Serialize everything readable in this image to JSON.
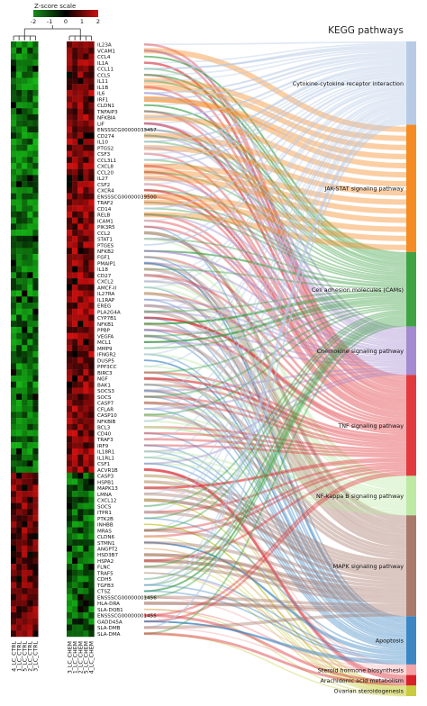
{
  "scale": {
    "title": "Z-score scale",
    "ticks": [
      "-2",
      "-1",
      "0",
      "1",
      "2"
    ],
    "low_color": "#1a8c1a",
    "mid_color": "#000000",
    "high_color": "#d01010"
  },
  "right_title": "KEGG pathways",
  "genes": [
    "IL23A",
    "VCAM1",
    "CCL4",
    "IL1A",
    "CCL11",
    "CCL5",
    "IL11",
    "IL1B",
    "IL6",
    "IRF1",
    "CLDN1",
    "TNFAIP3",
    "NFKBIA",
    "LIF",
    "ENSSSCG00000033457",
    "CD274",
    "IL10",
    "PTGS2",
    "CSF3",
    "CCL3L1",
    "CXCL8",
    "CCL20",
    "IL27",
    "CSF2",
    "CXCR4",
    "ENSSSCG00000039500",
    "TRAF2",
    "CD14",
    "RELB",
    "ICAM1",
    "PIK3R5",
    "CCL2",
    "STAT1",
    "PTGES",
    "NFKB2",
    "FGF1",
    "PMAIP1",
    "IL18",
    "CD27",
    "CXCL2",
    "AMCF-II",
    "IL27RA",
    "IL1RAP",
    "EREG",
    "PLA2G4A",
    "CYP7B1",
    "NFKB1",
    "PPBP",
    "VEGFA",
    "MCL1",
    "MMP9",
    "IFNGR2",
    "DUSP5",
    "PPP3CC",
    "BIRC3",
    "NGF",
    "BAK1",
    "SOCS3",
    "SOCS",
    "CASP7",
    "CFLAR",
    "CASP10",
    "NFKBIB",
    "BCL3",
    "CD40",
    "TRAF3",
    "IRF9",
    "IL18R1",
    "IL1RL1",
    "CSF1",
    "ACVR1B",
    "CASP3",
    "HSPB1",
    "MAPK13",
    "LMNA",
    "CXCL12",
    "SOCS",
    "ITPR1",
    "PTK2B",
    "INHBB",
    "MRAS",
    "CLDN6",
    "STMN1",
    "ANGPT2",
    "HSD3B7",
    "HSPA2",
    "FLNC",
    "TRAF5",
    "CDH5",
    "TGFB3",
    "CTSZ",
    "ENSSSCG00000001456",
    "HLA-DRA",
    "SLA-DQB1",
    "ENSSSCG00000001455",
    "GADD45A",
    "SLA-DMB",
    "SLA-DMA"
  ],
  "samples": [
    "4_LC_CTRL",
    "1_LC_CTRL",
    "5_LC_CTRL",
    "2_LC_CTRL",
    "3_LC_CTRL",
    "3_LC_CHEM",
    "1_LC_CHEM",
    "2_LC_CHEM",
    "5_LC_CHEM",
    "4_LC_CHEM"
  ],
  "pathways": [
    {
      "name": "Cytokine-cytokine receptor interaction",
      "color": "#b7cbe6"
    },
    {
      "name": "JAK-STAT signaling pathway",
      "color": "#f58b23"
    },
    {
      "name": "Cell adhesion molecules (CAMs)",
      "color": "#3fa344"
    },
    {
      "name": "Chemokine signaling pathway",
      "color": "#a48ad0"
    },
    {
      "name": "TNF signaling pathway",
      "color": "#e03a3e"
    },
    {
      "name": "NF-kappa B signaling pathway",
      "color": "#bde9a4"
    },
    {
      "name": "MAPK signaling pathway",
      "color": "#a97a6c"
    },
    {
      "name": "Apoptosis",
      "color": "#3b86c3"
    },
    {
      "name": "Steroid hormone biosynthesis",
      "color": "#f5a3a6"
    },
    {
      "name": "Arachidonic acid metabolism",
      "color": "#d7222a"
    },
    {
      "name": "Ovarian steroidogenesis",
      "color": "#c9cc41"
    }
  ],
  "pathway_extent": [
    0.095,
    0.145,
    0.085,
    0.055,
    0.115,
    0.045,
    0.115,
    0.055,
    0.012,
    0.012,
    0.012
  ]
}
